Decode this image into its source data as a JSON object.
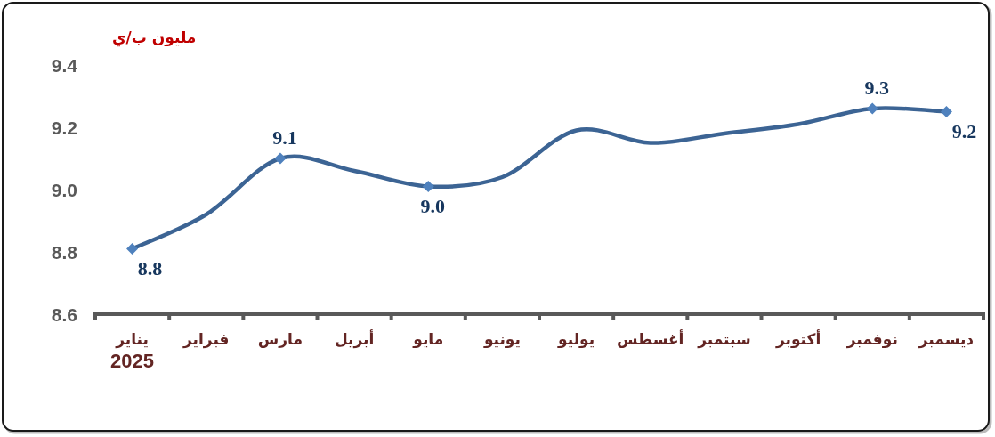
{
  "chart_data": {
    "type": "line",
    "ylabel": "مليون ب/ي",
    "categories": [
      "يناير\n2025",
      "فبراير",
      "مارس",
      "أبريل",
      "مايو",
      "يونيو",
      "يوليو",
      "أغسطس",
      "سبتمبر",
      "أكتوبر",
      "نوفمبر",
      "ديسمبر"
    ],
    "series": [
      {
        "color": "#3c6494",
        "marker": "none",
        "values": [
          8.81,
          8.92,
          9.1,
          9.06,
          9.01,
          9.04,
          9.19,
          9.15,
          9.18,
          9.21,
          9.26,
          9.25
        ]
      },
      {
        "type": "scatter",
        "color": "#4f81bd",
        "marker": "diamond",
        "values": [
          8.81,
          null,
          9.1,
          null,
          9.01,
          null,
          null,
          null,
          null,
          null,
          9.26,
          9.25
        ],
        "value_labels": [
          "8.8",
          null,
          "9.1",
          null,
          "9.0",
          null,
          null,
          null,
          null,
          null,
          "9.3",
          "9.2"
        ]
      }
    ],
    "ylim": [
      8.6,
      9.4
    ],
    "yticks": [
      {
        "value": 8.6,
        "label": "8.6"
      },
      {
        "value": 8.8,
        "label": "8.8"
      },
      {
        "value": 9.0,
        "label": "9.0"
      },
      {
        "value": 9.2,
        "label": "9.2"
      },
      {
        "value": 9.4,
        "label": "9.4"
      }
    ]
  }
}
